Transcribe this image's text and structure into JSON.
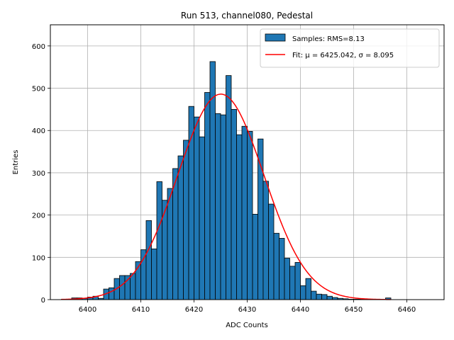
{
  "chart_data": {
    "type": "bar",
    "title": "Run 513, channel080, Pedestal",
    "xlabel": "ADC Counts",
    "ylabel": "Entries",
    "xlim": [
      6393,
      6467
    ],
    "ylim": [
      0,
      650
    ],
    "grid": true,
    "legend_position": "top-right",
    "x_ticks": [
      6400,
      6410,
      6420,
      6430,
      6440,
      6450,
      6460
    ],
    "y_ticks": [
      0,
      100,
      200,
      300,
      400,
      500,
      600
    ],
    "bin_width": 1,
    "bins": {
      "starts": [
        6397,
        6398,
        6399,
        6400,
        6401,
        6402,
        6403,
        6404,
        6405,
        6406,
        6407,
        6408,
        6409,
        6410,
        6411,
        6412,
        6413,
        6414,
        6415,
        6416,
        6417,
        6418,
        6419,
        6420,
        6421,
        6422,
        6423,
        6424,
        6425,
        6426,
        6427,
        6428,
        6429,
        6430,
        6431,
        6432,
        6433,
        6434,
        6435,
        6436,
        6437,
        6438,
        6439,
        6440,
        6441,
        6442,
        6443,
        6444,
        6445,
        6446,
        6447,
        6448,
        6449,
        6450,
        6451,
        6452,
        6453,
        6454,
        6455,
        6456
      ],
      "values": [
        4,
        4,
        3,
        6,
        8,
        3,
        25,
        28,
        50,
        57,
        57,
        62,
        90,
        118,
        187,
        120,
        279,
        235,
        263,
        310,
        340,
        377,
        457,
        432,
        385,
        490,
        563,
        440,
        437,
        530,
        450,
        390,
        410,
        398,
        202,
        380,
        280,
        226,
        157,
        145,
        98,
        79,
        88,
        33,
        50,
        20,
        13,
        12,
        8,
        5,
        3,
        2,
        1,
        1,
        1,
        1,
        1,
        1,
        1,
        4
      ]
    },
    "series": [
      {
        "name": "Samples: RMS=8.13",
        "kind": "histogram",
        "color": "#1f77b4"
      },
      {
        "name": "Fit: μ = 6425.042, σ = 8.095",
        "kind": "gaussian",
        "color": "#ff0000",
        "mu": 6425.042,
        "sigma": 8.095,
        "amplitude": 486,
        "x_range": [
          6395,
          6457
        ]
      }
    ]
  }
}
